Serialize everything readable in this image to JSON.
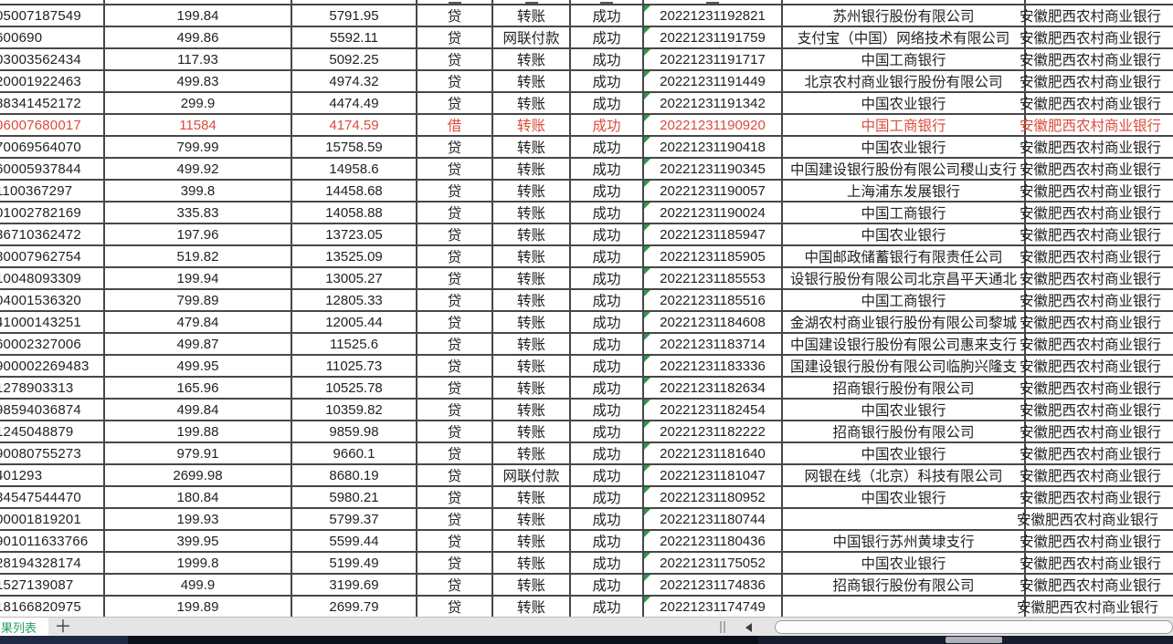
{
  "colors": {
    "accent_red": "#dd4a3c",
    "grid_line": "#474747",
    "green_flag_triangle": "#2c9a4b",
    "tab_label_green": "#27a05e"
  },
  "sheet_tabs": {
    "active_label": "果列表",
    "add_label": "＋"
  },
  "table": {
    "columns": [
      "account",
      "amount",
      "balance",
      "drcr",
      "type",
      "status",
      "timestamp",
      "bank",
      "branch"
    ],
    "rows": [
      {
        "account": "05007187549",
        "amount": "199.84",
        "balance": "5791.95",
        "drcr": "贷",
        "type": "转账",
        "status": "成功",
        "timestamp": "20221231192821",
        "bank": "苏州银行股份有限公司",
        "branch": "安徽肥西农村商业银行",
        "red": false
      },
      {
        "account": "600690",
        "amount": "499.86",
        "balance": "5592.11",
        "drcr": "贷",
        "type": "网联付款",
        "status": "成功",
        "timestamp": "20221231191759",
        "bank": "支付宝（中国）网络技术有限公司",
        "branch": "安徽肥西农村商业银行",
        "red": false
      },
      {
        "account": "03003562434",
        "amount": "117.93",
        "balance": "5092.25",
        "drcr": "贷",
        "type": "转账",
        "status": "成功",
        "timestamp": "20221231191717",
        "bank": "中国工商银行",
        "branch": "安徽肥西农村商业银行",
        "red": false
      },
      {
        "account": "20001922463",
        "amount": "499.83",
        "balance": "4974.32",
        "drcr": "贷",
        "type": "转账",
        "status": "成功",
        "timestamp": "20221231191449",
        "bank": "北京农村商业银行股份有限公司",
        "branch": "安徽肥西农村商业银行",
        "red": false
      },
      {
        "account": "88341452172",
        "amount": "299.9",
        "balance": "4474.49",
        "drcr": "贷",
        "type": "转账",
        "status": "成功",
        "timestamp": "20221231191342",
        "bank": "中国农业银行",
        "branch": "安徽肥西农村商业银行",
        "red": false
      },
      {
        "account": "06007680017",
        "amount": "11584",
        "balance": "4174.59",
        "drcr": "借",
        "type": "转账",
        "status": "成功",
        "timestamp": "20221231190920",
        "bank": "中国工商银行",
        "branch": "安徽肥西农村商业银行",
        "red": true
      },
      {
        "account": "70069564070",
        "amount": "799.99",
        "balance": "15758.59",
        "drcr": "贷",
        "type": "转账",
        "status": "成功",
        "timestamp": "20221231190418",
        "bank": "中国农业银行",
        "branch": "安徽肥西农村商业银行",
        "red": false
      },
      {
        "account": "60005937844",
        "amount": "499.92",
        "balance": "14958.6",
        "drcr": "贷",
        "type": "转账",
        "status": "成功",
        "timestamp": "20221231190345",
        "bank": "中国建设银行股份有限公司稷山支行",
        "branch": "安徽肥西农村商业银行",
        "red": false
      },
      {
        "account": "1100367297",
        "amount": "399.8",
        "balance": "14458.68",
        "drcr": "贷",
        "type": "转账",
        "status": "成功",
        "timestamp": "20221231190057",
        "bank": "上海浦东发展银行",
        "branch": "安徽肥西农村商业银行",
        "red": false
      },
      {
        "account": "01002782169",
        "amount": "335.83",
        "balance": "14058.88",
        "drcr": "贷",
        "type": "转账",
        "status": "成功",
        "timestamp": "20221231190024",
        "bank": "中国工商银行",
        "branch": "安徽肥西农村商业银行",
        "red": false
      },
      {
        "account": "36710362472",
        "amount": "197.96",
        "balance": "13723.05",
        "drcr": "贷",
        "type": "转账",
        "status": "成功",
        "timestamp": "20221231185947",
        "bank": "中国农业银行",
        "branch": "安徽肥西农村商业银行",
        "red": false
      },
      {
        "account": "80007962754",
        "amount": "519.82",
        "balance": "13525.09",
        "drcr": "贷",
        "type": "转账",
        "status": "成功",
        "timestamp": "20221231185905",
        "bank": "中国邮政储蓄银行有限责任公司",
        "branch": "安徽肥西农村商业银行",
        "red": false
      },
      {
        "account": "10048093309",
        "amount": "199.94",
        "balance": "13005.27",
        "drcr": "贷",
        "type": "转账",
        "status": "成功",
        "timestamp": "20221231185553",
        "bank": "设银行股份有限公司北京昌平天通北",
        "branch": "安徽肥西农村商业银行",
        "red": false
      },
      {
        "account": "04001536320",
        "amount": "799.89",
        "balance": "12805.33",
        "drcr": "贷",
        "type": "转账",
        "status": "成功",
        "timestamp": "20221231185516",
        "bank": "中国工商银行",
        "branch": "安徽肥西农村商业银行",
        "red": false
      },
      {
        "account": "41000143251",
        "amount": "479.84",
        "balance": "12005.44",
        "drcr": "贷",
        "type": "转账",
        "status": "成功",
        "timestamp": "20221231184608",
        "bank": "金湖农村商业银行股份有限公司黎城",
        "branch": "安徽肥西农村商业银行",
        "red": false
      },
      {
        "account": "60002327006",
        "amount": "499.87",
        "balance": "11525.6",
        "drcr": "贷",
        "type": "转账",
        "status": "成功",
        "timestamp": "20221231183714",
        "bank": "中国建设银行股份有限公司惠来支行",
        "branch": "安徽肥西农村商业银行",
        "red": false
      },
      {
        "account": "900002269483",
        "amount": "499.95",
        "balance": "11025.73",
        "drcr": "贷",
        "type": "转账",
        "status": "成功",
        "timestamp": "20221231183336",
        "bank": "国建设银行股份有限公司临朐兴隆支",
        "branch": "安徽肥西农村商业银行",
        "red": false
      },
      {
        "account": "1278903313",
        "amount": "165.96",
        "balance": "10525.78",
        "drcr": "贷",
        "type": "转账",
        "status": "成功",
        "timestamp": "20221231182634",
        "bank": "招商银行股份有限公司",
        "branch": "安徽肥西农村商业银行",
        "red": false
      },
      {
        "account": "98594036874",
        "amount": "499.84",
        "balance": "10359.82",
        "drcr": "贷",
        "type": "转账",
        "status": "成功",
        "timestamp": "20221231182454",
        "bank": "中国农业银行",
        "branch": "安徽肥西农村商业银行",
        "red": false
      },
      {
        "account": "1245048879",
        "amount": "199.88",
        "balance": "9859.98",
        "drcr": "贷",
        "type": "转账",
        "status": "成功",
        "timestamp": "20221231182222",
        "bank": "招商银行股份有限公司",
        "branch": "安徽肥西农村商业银行",
        "red": false
      },
      {
        "account": "90080755273",
        "amount": "979.91",
        "balance": "9660.1",
        "drcr": "贷",
        "type": "转账",
        "status": "成功",
        "timestamp": "20221231181640",
        "bank": "中国农业银行",
        "branch": "安徽肥西农村商业银行",
        "red": false
      },
      {
        "account": "401293",
        "amount": "2699.98",
        "balance": "8680.19",
        "drcr": "贷",
        "type": "网联付款",
        "status": "成功",
        "timestamp": "20221231181047",
        "bank": "网银在线（北京）科技有限公司",
        "branch": "安徽肥西农村商业银行",
        "red": false
      },
      {
        "account": "34547544470",
        "amount": "180.84",
        "balance": "5980.21",
        "drcr": "贷",
        "type": "转账",
        "status": "成功",
        "timestamp": "20221231180952",
        "bank": "中国农业银行",
        "branch": "安徽肥西农村商业银行",
        "red": false
      },
      {
        "account": "00001819201",
        "amount": "199.93",
        "balance": "5799.37",
        "drcr": "贷",
        "type": "转账",
        "status": "成功",
        "timestamp": "20221231180744",
        "bank": "",
        "branch": "安徽肥西农村商业银行",
        "red": false
      },
      {
        "account": "901011633766",
        "amount": "399.95",
        "balance": "5599.44",
        "drcr": "贷",
        "type": "转账",
        "status": "成功",
        "timestamp": "20221231180436",
        "bank": "中国银行苏州黄埭支行",
        "branch": "安徽肥西农村商业银行",
        "red": false
      },
      {
        "account": "28194328174",
        "amount": "1999.8",
        "balance": "5199.49",
        "drcr": "贷",
        "type": "转账",
        "status": "成功",
        "timestamp": "20221231175052",
        "bank": "中国农业银行",
        "branch": "安徽肥西农村商业银行",
        "red": false
      },
      {
        "account": "1527139087",
        "amount": "499.9",
        "balance": "3199.69",
        "drcr": "贷",
        "type": "转账",
        "status": "成功",
        "timestamp": "20221231174836",
        "bank": "招商银行股份有限公司",
        "branch": "安徽肥西农村商业银行",
        "red": false
      },
      {
        "account": "18166820975",
        "amount": "199.89",
        "balance": "2699.79",
        "drcr": "贷",
        "type": "转账",
        "status": "成功",
        "timestamp": "20221231174749",
        "bank": "",
        "branch": "安徽肥西农村商业银行",
        "red": false
      }
    ]
  }
}
